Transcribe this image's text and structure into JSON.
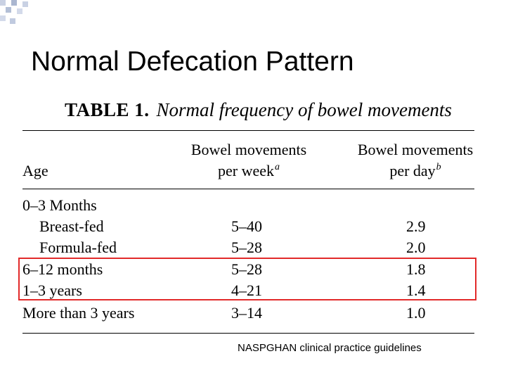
{
  "slide": {
    "title": "Normal Defecation Pattern",
    "source": "NASPGHAN clinical practice guidelines"
  },
  "table": {
    "caption_label": "TABLE 1.",
    "caption_text": "Normal frequency of bowel movements",
    "headers": {
      "age": "Age",
      "week_line1": "Bowel movements",
      "week_line2": "per week",
      "week_sup": "a",
      "day_line1": "Bowel movements",
      "day_line2": "per day",
      "day_sup": "b"
    },
    "group_label": "0–3 Months",
    "rows": [
      {
        "age": "Breast-fed",
        "per_week": "5–40",
        "per_day": "2.9"
      },
      {
        "age": "Formula-fed",
        "per_week": "5–28",
        "per_day": "2.0"
      },
      {
        "age": "6–12 months",
        "per_week": "5–28",
        "per_day": "1.8"
      },
      {
        "age": "1–3 years",
        "per_week": "4–21",
        "per_day": "1.4"
      },
      {
        "age": "More than 3 years",
        "per_week": "3–14",
        "per_day": "1.0"
      }
    ]
  },
  "colors": {
    "highlight": "#e22a2a",
    "decoration": "#b8c2d8"
  }
}
